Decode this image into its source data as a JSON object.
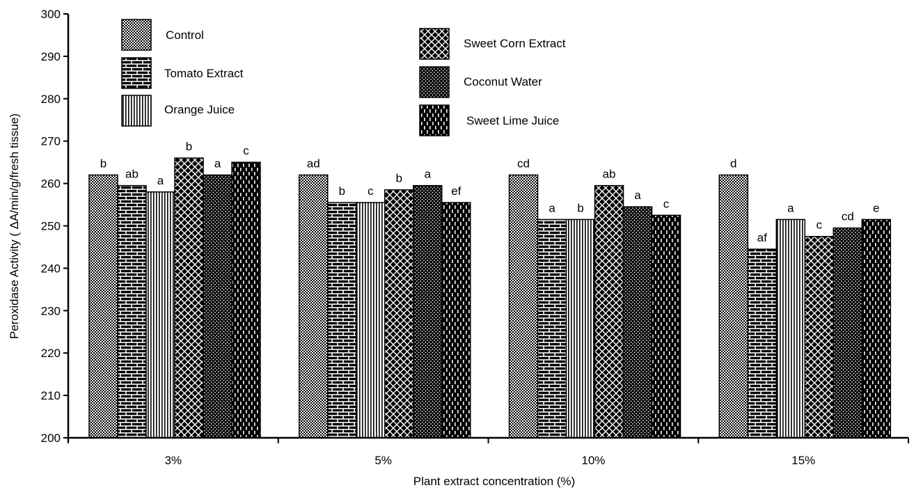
{
  "chart_data": {
    "type": "bar",
    "title": "",
    "xlabel": "Plant extract concentration (%)",
    "ylabel": "Peroxidase Activity ( ΔA/min/g/fresh tissue)",
    "ylim": [
      200,
      300
    ],
    "yticks": [
      200,
      210,
      220,
      230,
      240,
      250,
      260,
      270,
      280,
      290,
      300
    ],
    "categories": [
      "3%",
      "5%",
      "10%",
      "15%"
    ],
    "grid": false,
    "legend_position": "top",
    "series": [
      {
        "name": "Control",
        "pattern": "checker",
        "values": [
          262,
          262,
          262,
          262
        ],
        "letters": [
          "b",
          "ad",
          "cd",
          "d"
        ]
      },
      {
        "name": "Tomato Extract",
        "pattern": "brick",
        "values": [
          259.5,
          255.5,
          251.5,
          244.5
        ],
        "letters": [
          "ab",
          "b",
          "a",
          "af"
        ]
      },
      {
        "name": "Orange Juice",
        "pattern": "vertical-lines",
        "values": [
          258,
          255.5,
          251.5,
          251.5
        ],
        "letters": [
          "a",
          "c",
          "b",
          "a"
        ]
      },
      {
        "name": "Sweet Corn Extract",
        "pattern": "diamond-lattice",
        "values": [
          266,
          258.5,
          259.5,
          247.5
        ],
        "letters": [
          "b",
          "b",
          "ab",
          "c"
        ]
      },
      {
        "name": "Coconut Water",
        "pattern": "dots",
        "values": [
          262,
          259.5,
          254.5,
          249.5
        ],
        "letters": [
          "a",
          "a",
          "a",
          "cd"
        ]
      },
      {
        "name": "Sweet Lime Juice",
        "pattern": "dashes",
        "values": [
          265,
          255.5,
          252.5,
          251.5
        ],
        "letters": [
          "c",
          "ef",
          "c",
          "e"
        ]
      }
    ]
  }
}
